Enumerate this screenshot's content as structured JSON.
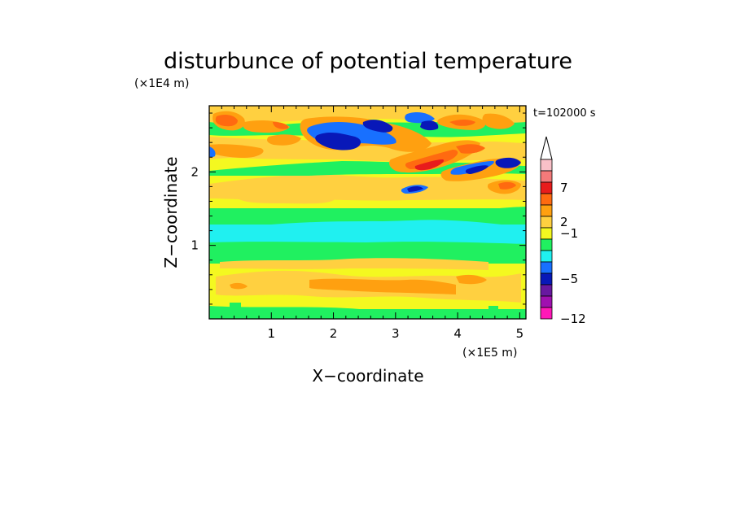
{
  "chart_data": {
    "type": "heatmap",
    "title": "disturbunce of potential temperature",
    "time_label": "t=102000 s",
    "xlabel": "X−coordinate",
    "ylabel": "Z−coordinate",
    "x_unit": "(×1E5 m)",
    "y_unit": "(×1E4 m)",
    "xlim": [
      0,
      5.1
    ],
    "ylim": [
      0,
      2.9
    ],
    "x_ticks": [
      "1",
      "2",
      "3",
      "4",
      "5"
    ],
    "y_ticks": [
      "1",
      "2"
    ],
    "colorbar": {
      "tick_labels": [
        "7",
        "2",
        "−1",
        "−5",
        "−12"
      ],
      "colors": [
        "#f9c0c8",
        "#f47a7a",
        "#e81c1c",
        "#ff6a10",
        "#ffa010",
        "#ffd040",
        "#f4f820",
        "#20f060",
        "#20f0f0",
        "#1870ff",
        "#0818b8",
        "#6818a0",
        "#a010b0",
        "#ff18b8"
      ],
      "extend_max": true
    },
    "level_colors": {
      "neg5": "#0818b8",
      "neg4": "#1870ff",
      "neg1": "#20f0f0",
      "zero": "#20f060",
      "pos1": "#f4f820",
      "pos2": "#ffd040",
      "pos4": "#ffa010",
      "pos5": "#ff6a10",
      "pos7": "#e81c1c"
    }
  }
}
